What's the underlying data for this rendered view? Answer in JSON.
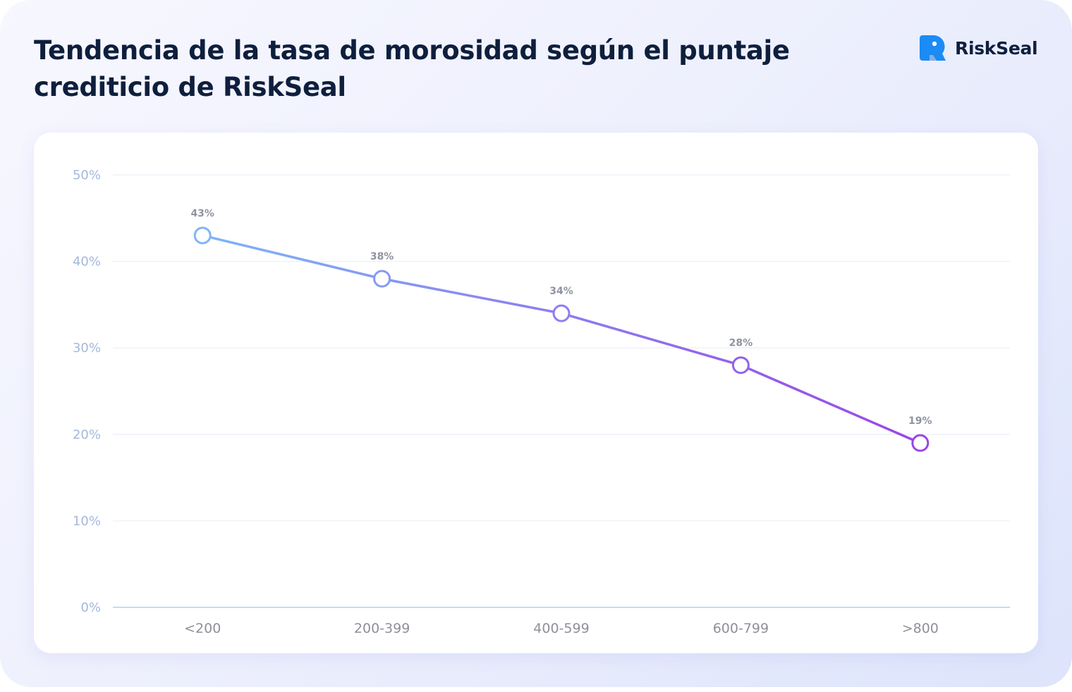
{
  "header": {
    "title_line1": "Tendencia de la tasa de morosidad según el puntaje",
    "title_line2": "crediticio de RiskSeal",
    "logo_text": "RiskSeal",
    "logo_icon": "seal-logo-icon"
  },
  "colors": {
    "line_start": "#7fb5fa",
    "line_end": "#9b45e6",
    "title": "#0e1f3d",
    "ytick": "#a5b8dc",
    "xtick": "#8f9099",
    "data_label": "#8f94a2",
    "logo_accent": "#1b8bf5"
  },
  "chart_data": {
    "type": "line",
    "categories": [
      "<200",
      "200-399",
      "400-599",
      "600-799",
      ">800"
    ],
    "series": [
      {
        "values": [
          43,
          38,
          34,
          28,
          19
        ]
      }
    ],
    "data_labels": [
      "43%",
      "38%",
      "34%",
      "28%",
      "19%"
    ],
    "yticks": [
      "0%",
      "10%",
      "20%",
      "30%",
      "40%",
      "50%"
    ],
    "ylim": [
      0,
      50
    ],
    "ytick_values": [
      0,
      10,
      20,
      30,
      40,
      50
    ],
    "grid": true,
    "legend": "none",
    "title": "",
    "xlabel": "",
    "ylabel": ""
  }
}
